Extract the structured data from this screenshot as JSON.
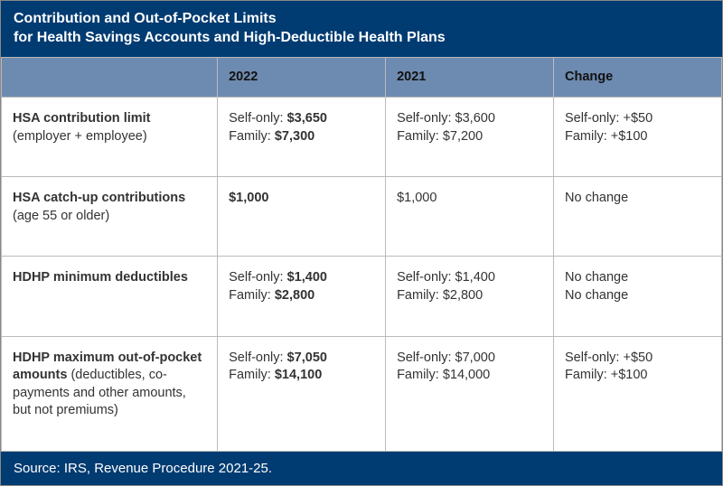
{
  "colors": {
    "header_bg": "#003b71",
    "header_text": "#ffffff",
    "col_header_bg": "#6d8ab0",
    "border": "#bbbbbb",
    "body_text": "#333333"
  },
  "title_line1": "Contribution and Out-of-Pocket Limits",
  "title_line2": "for Health Savings Accounts and High-Deductible Health Plans",
  "columns": [
    "",
    "2022",
    "2021",
    "Change"
  ],
  "rows": [
    {
      "label_bold": "HSA contribution limit",
      "label_rest": " (employer + employee)",
      "y2022": [
        {
          "prefix": "Self-only: ",
          "value": "$3,650",
          "bold": true
        },
        {
          "prefix": "Family: ",
          "value": "$7,300",
          "bold": true
        }
      ],
      "y2021": [
        {
          "prefix": "Self-only: ",
          "value": "$3,600",
          "bold": false
        },
        {
          "prefix": "Family: ",
          "value": "$7,200",
          "bold": false
        }
      ],
      "change": [
        {
          "text": "Self-only: +$50"
        },
        {
          "text": "Family: +$100"
        }
      ]
    },
    {
      "label_bold": "HSA catch-up contributions",
      "label_rest": " (age 55 or older)",
      "y2022": [
        {
          "prefix": "",
          "value": "$1,000",
          "bold": true
        }
      ],
      "y2021": [
        {
          "prefix": "",
          "value": "$1,000",
          "bold": false
        }
      ],
      "change": [
        {
          "text": "No change"
        }
      ]
    },
    {
      "label_bold": "HDHP minimum deductibles",
      "label_rest": "",
      "y2022": [
        {
          "prefix": "Self-only: ",
          "value": "$1,400",
          "bold": true
        },
        {
          "prefix": "Family: ",
          "value": "$2,800",
          "bold": true
        }
      ],
      "y2021": [
        {
          "prefix": "Self-only: ",
          "value": "$1,400",
          "bold": false
        },
        {
          "prefix": "Family: ",
          "value": "$2,800",
          "bold": false
        }
      ],
      "change": [
        {
          "text": "No change"
        },
        {
          "text": "No change"
        }
      ]
    },
    {
      "label_bold": "HDHP maximum out-of-pocket amounts",
      "label_rest": " (deductibles, co-payments and other amounts, but not premiums)",
      "y2022": [
        {
          "prefix": "Self-only: ",
          "value": "$7,050",
          "bold": true
        },
        {
          "prefix": "Family: ",
          "value": "$14,100",
          "bold": true
        }
      ],
      "y2021": [
        {
          "prefix": "Self-only: ",
          "value": "$7,000",
          "bold": false
        },
        {
          "prefix": "Family: ",
          "value": "$14,000",
          "bold": false
        }
      ],
      "change": [
        {
          "text": "Self-only: +$50"
        },
        {
          "text": "Family: +$100"
        }
      ]
    }
  ],
  "footer": "Source: IRS, Revenue Procedure 2021-25."
}
